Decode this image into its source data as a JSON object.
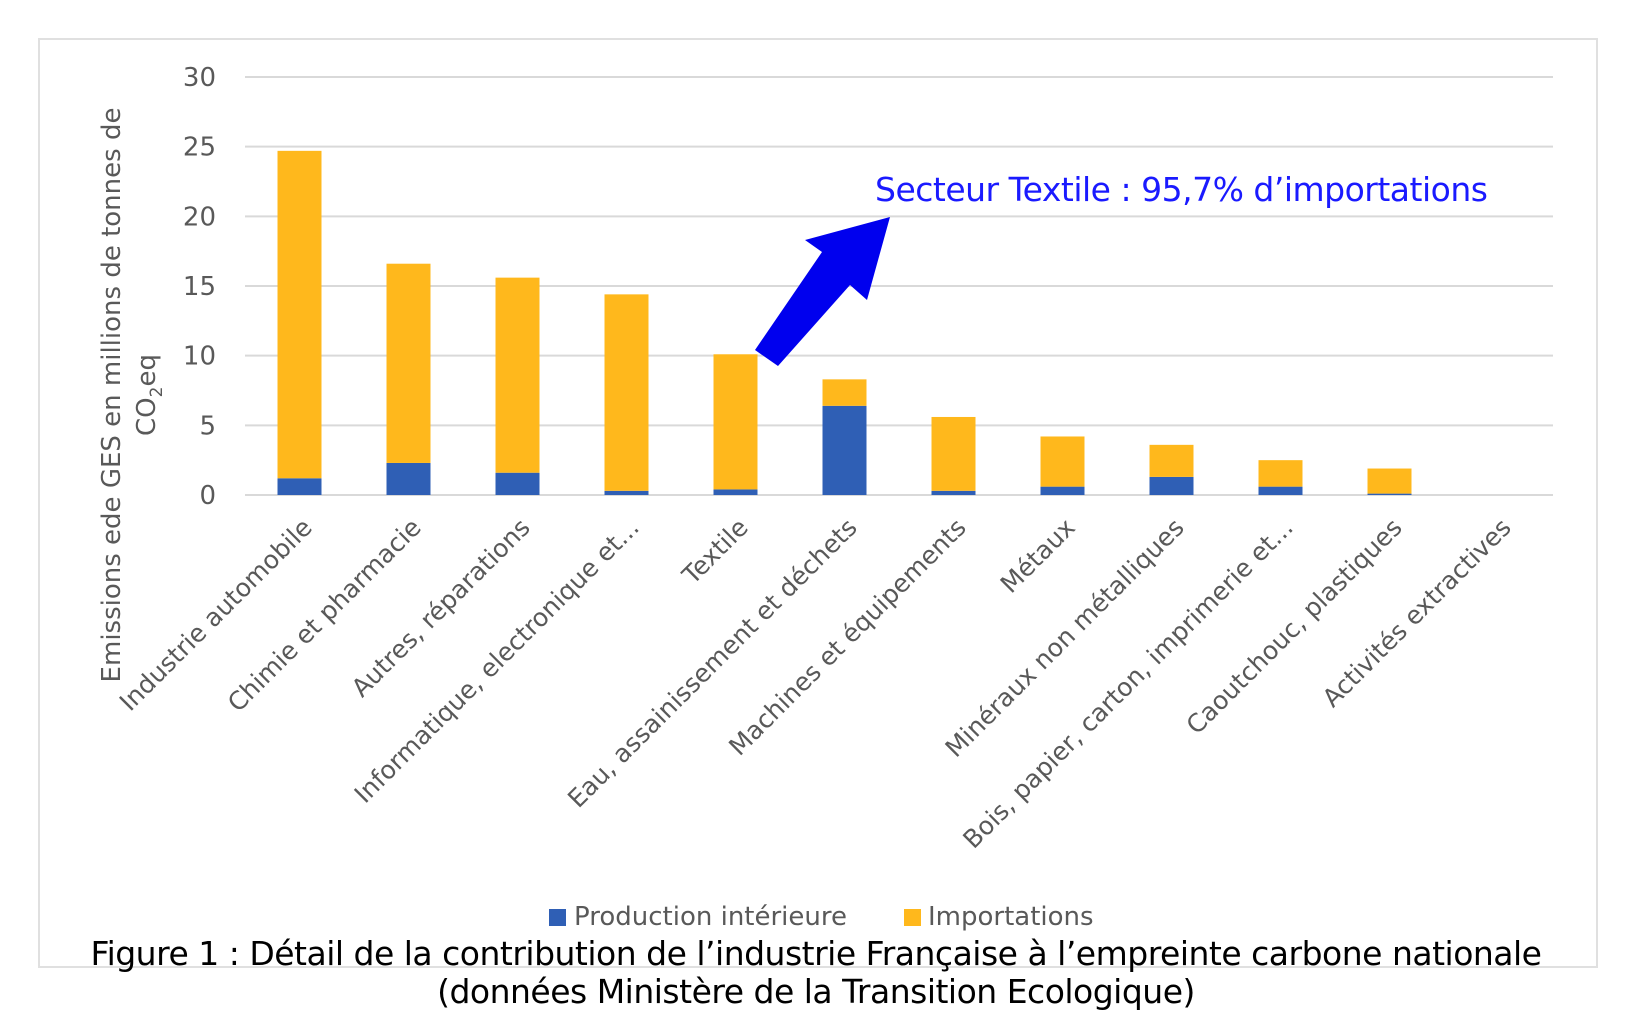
{
  "chart_data": {
    "type": "bar",
    "stacked": true,
    "categories": [
      "Industrie automobile",
      "Chimie et pharmacie",
      "Autres, réparations",
      "Informatique, electronique et...",
      "Textile",
      "Eau, assainissement et déchets",
      "Machines et équipements",
      "Métaux",
      "Minéraux non métalliques",
      "Bois, papier, carton, imprimerie et...",
      "Caoutchouc, plastiques",
      "Activités extractives"
    ],
    "series": [
      {
        "name": "Production intérieure",
        "color": "#2f5fb5",
        "values": [
          1.2,
          2.3,
          1.6,
          0.3,
          0.4,
          6.4,
          0.3,
          0.6,
          1.3,
          0.6,
          0.1,
          0.0
        ]
      },
      {
        "name": "Importations",
        "color": "#ffb81c",
        "values": [
          23.5,
          14.3,
          14.0,
          14.1,
          9.7,
          1.9,
          5.3,
          3.6,
          2.3,
          1.9,
          1.8,
          0.0
        ]
      }
    ],
    "ylabel_line1": "Emissions ede GES en millions de tonnes de",
    "ylabel_line2_main": "CO",
    "ylabel_line2_sub": "2",
    "ylabel_line2_end": "eq",
    "yticks": [
      0,
      5,
      10,
      15,
      20,
      25,
      30
    ],
    "ylim": [
      0,
      30
    ],
    "grid": true,
    "legend_position": "bottom",
    "annotation": {
      "text": "Secteur Textile : 95,7% d’importations",
      "color": "#1a1aff",
      "target_category": "Textile"
    }
  },
  "caption": {
    "line1": "Figure 1 : Détail de la contribution de l’industrie Française à l’empreinte carbone nationale",
    "line2": "(données Ministère de la Transition Ecologique)"
  }
}
